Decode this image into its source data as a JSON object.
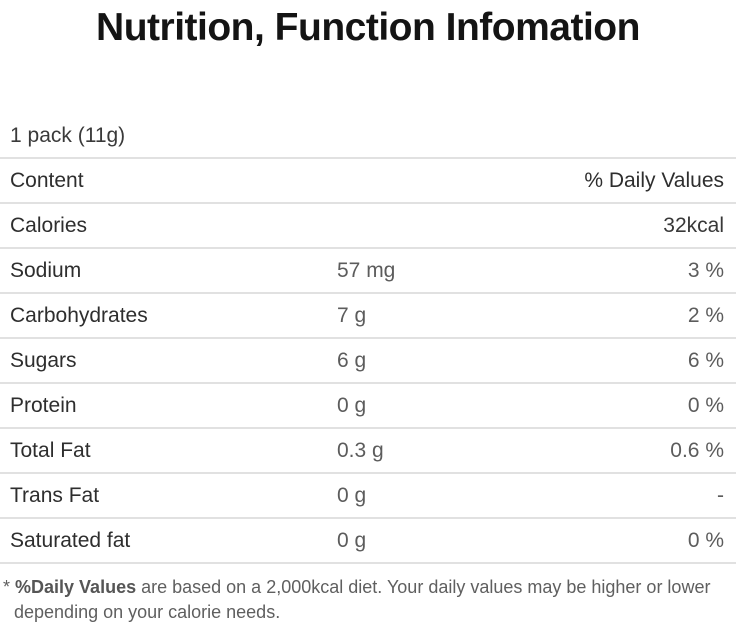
{
  "page": {
    "title": "Nutrition, Function Infomation",
    "serving": "1 pack (11g)"
  },
  "table": {
    "header": {
      "label": "Content",
      "daily_values": "% Daily Values"
    },
    "rows": [
      {
        "label": "Calories",
        "amount": "",
        "dv": "32kcal"
      },
      {
        "label": "Sodium",
        "amount": "57 mg",
        "dv": "3 %"
      },
      {
        "label": "Carbohydrates",
        "amount": "7 g",
        "dv": "2 %"
      },
      {
        "label": "Sugars",
        "amount": "6 g",
        "dv": "6 %"
      },
      {
        "label": "Protein",
        "amount": "0 g",
        "dv": "0 %"
      },
      {
        "label": "Total Fat",
        "amount": "0.3 g",
        "dv": "0.6 %"
      },
      {
        "label": "Trans Fat",
        "amount": "0 g",
        "dv": "-"
      },
      {
        "label": "Saturated fat",
        "amount": "0 g",
        "dv": "0 %"
      }
    ]
  },
  "footnote": {
    "prefix": "* ",
    "bold": "%Daily Values",
    "line1_rest": " are based on a 2,000kcal diet. Your daily values may be higher or lower",
    "line2": "depending on your calorie needs."
  },
  "colors": {
    "title_text": "#141414",
    "label_text": "#2e2e2e",
    "value_text": "#5c5c5c",
    "divider": "#e1e1e1",
    "footnote_text": "#5f5f5f",
    "background": "#ffffff"
  }
}
